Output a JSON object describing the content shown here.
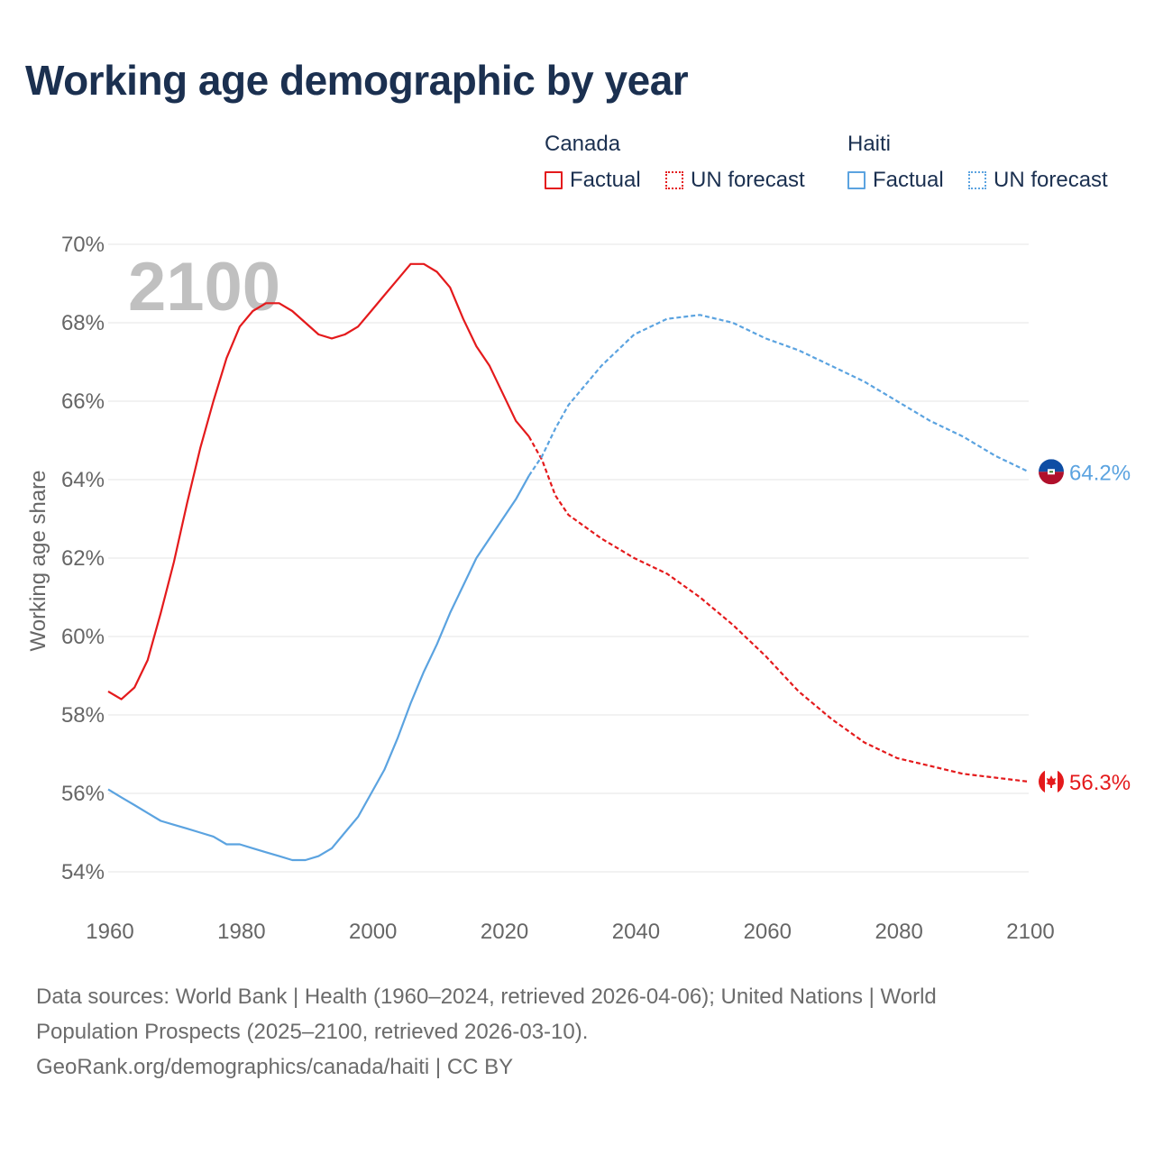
{
  "title": "Working age demographic by year",
  "legend": {
    "groups": [
      {
        "name": "Canada",
        "factual": "Factual",
        "forecast": "UN forecast",
        "color": "#e41a1c"
      },
      {
        "name": "Haiti",
        "factual": "Factual",
        "forecast": "UN forecast",
        "color": "#5ba3e0"
      }
    ]
  },
  "footer": {
    "line1": "Data sources: World Bank | Health (1960–2024, retrieved 2026-04-06); United Nations | World",
    "line2": "Population Prospects (2025–2100, retrieved 2026-03-10).",
    "line3": "GeoRank.org/demographics/canada/haiti | CC BY"
  },
  "colors": {
    "title": "#1b3050",
    "axis_text": "#666666",
    "grid": "#e5e5e5",
    "year_label": "#c0c0c0"
  },
  "chart_data": {
    "type": "line",
    "title": "Working age demographic by year",
    "xlabel": "",
    "ylabel": "Working age share",
    "xlim": [
      1960,
      2100
    ],
    "ylim": [
      54,
      70
    ],
    "x_ticks": [
      1960,
      1980,
      2000,
      2020,
      2040,
      2060,
      2080,
      2100
    ],
    "y_ticks": [
      54,
      56,
      58,
      60,
      62,
      64,
      66,
      68,
      70
    ],
    "y_tick_labels": [
      "54%",
      "56%",
      "58%",
      "60%",
      "62%",
      "64%",
      "66%",
      "68%",
      "70%"
    ],
    "current_year_label": "2100",
    "forecast_start": 2024,
    "series": [
      {
        "name": "Canada",
        "color": "#e41a1c",
        "end_label": "56.3%",
        "flag_icon": "canada-flag-icon",
        "points": [
          [
            1960,
            58.6
          ],
          [
            1962,
            58.4
          ],
          [
            1964,
            58.7
          ],
          [
            1966,
            59.4
          ],
          [
            1968,
            60.6
          ],
          [
            1970,
            61.9
          ],
          [
            1972,
            63.4
          ],
          [
            1974,
            64.8
          ],
          [
            1976,
            66.0
          ],
          [
            1978,
            67.1
          ],
          [
            1980,
            67.9
          ],
          [
            1982,
            68.3
          ],
          [
            1984,
            68.5
          ],
          [
            1986,
            68.5
          ],
          [
            1988,
            68.3
          ],
          [
            1990,
            68.0
          ],
          [
            1992,
            67.7
          ],
          [
            1994,
            67.6
          ],
          [
            1996,
            67.7
          ],
          [
            1998,
            67.9
          ],
          [
            2000,
            68.3
          ],
          [
            2002,
            68.7
          ],
          [
            2004,
            69.1
          ],
          [
            2006,
            69.5
          ],
          [
            2008,
            69.5
          ],
          [
            2010,
            69.3
          ],
          [
            2012,
            68.9
          ],
          [
            2014,
            68.1
          ],
          [
            2016,
            67.4
          ],
          [
            2018,
            66.9
          ],
          [
            2020,
            66.2
          ],
          [
            2022,
            65.5
          ],
          [
            2024,
            65.1
          ],
          [
            2026,
            64.5
          ],
          [
            2028,
            63.6
          ],
          [
            2030,
            63.1
          ],
          [
            2035,
            62.5
          ],
          [
            2040,
            62.0
          ],
          [
            2045,
            61.6
          ],
          [
            2050,
            61.0
          ],
          [
            2055,
            60.3
          ],
          [
            2060,
            59.5
          ],
          [
            2065,
            58.6
          ],
          [
            2070,
            57.9
          ],
          [
            2075,
            57.3
          ],
          [
            2080,
            56.9
          ],
          [
            2085,
            56.7
          ],
          [
            2090,
            56.5
          ],
          [
            2095,
            56.4
          ],
          [
            2100,
            56.3
          ]
        ]
      },
      {
        "name": "Haiti",
        "color": "#5ba3e0",
        "end_label": "64.2%",
        "flag_icon": "haiti-flag-icon",
        "points": [
          [
            1960,
            56.1
          ],
          [
            1962,
            55.9
          ],
          [
            1964,
            55.7
          ],
          [
            1966,
            55.5
          ],
          [
            1968,
            55.3
          ],
          [
            1970,
            55.2
          ],
          [
            1972,
            55.1
          ],
          [
            1974,
            55.0
          ],
          [
            1976,
            54.9
          ],
          [
            1978,
            54.7
          ],
          [
            1980,
            54.7
          ],
          [
            1982,
            54.6
          ],
          [
            1984,
            54.5
          ],
          [
            1986,
            54.4
          ],
          [
            1988,
            54.3
          ],
          [
            1990,
            54.3
          ],
          [
            1992,
            54.4
          ],
          [
            1994,
            54.6
          ],
          [
            1996,
            55.0
          ],
          [
            1998,
            55.4
          ],
          [
            2000,
            56.0
          ],
          [
            2002,
            56.6
          ],
          [
            2004,
            57.4
          ],
          [
            2006,
            58.3
          ],
          [
            2008,
            59.1
          ],
          [
            2010,
            59.8
          ],
          [
            2012,
            60.6
          ],
          [
            2014,
            61.3
          ],
          [
            2016,
            62.0
          ],
          [
            2018,
            62.5
          ],
          [
            2020,
            63.0
          ],
          [
            2022,
            63.5
          ],
          [
            2024,
            64.1
          ],
          [
            2026,
            64.6
          ],
          [
            2028,
            65.3
          ],
          [
            2030,
            65.9
          ],
          [
            2035,
            66.9
          ],
          [
            2040,
            67.7
          ],
          [
            2045,
            68.1
          ],
          [
            2050,
            68.2
          ],
          [
            2055,
            68.0
          ],
          [
            2060,
            67.6
          ],
          [
            2065,
            67.3
          ],
          [
            2070,
            66.9
          ],
          [
            2075,
            66.5
          ],
          [
            2080,
            66.0
          ],
          [
            2085,
            65.5
          ],
          [
            2090,
            65.1
          ],
          [
            2095,
            64.6
          ],
          [
            2100,
            64.2
          ]
        ]
      }
    ]
  }
}
